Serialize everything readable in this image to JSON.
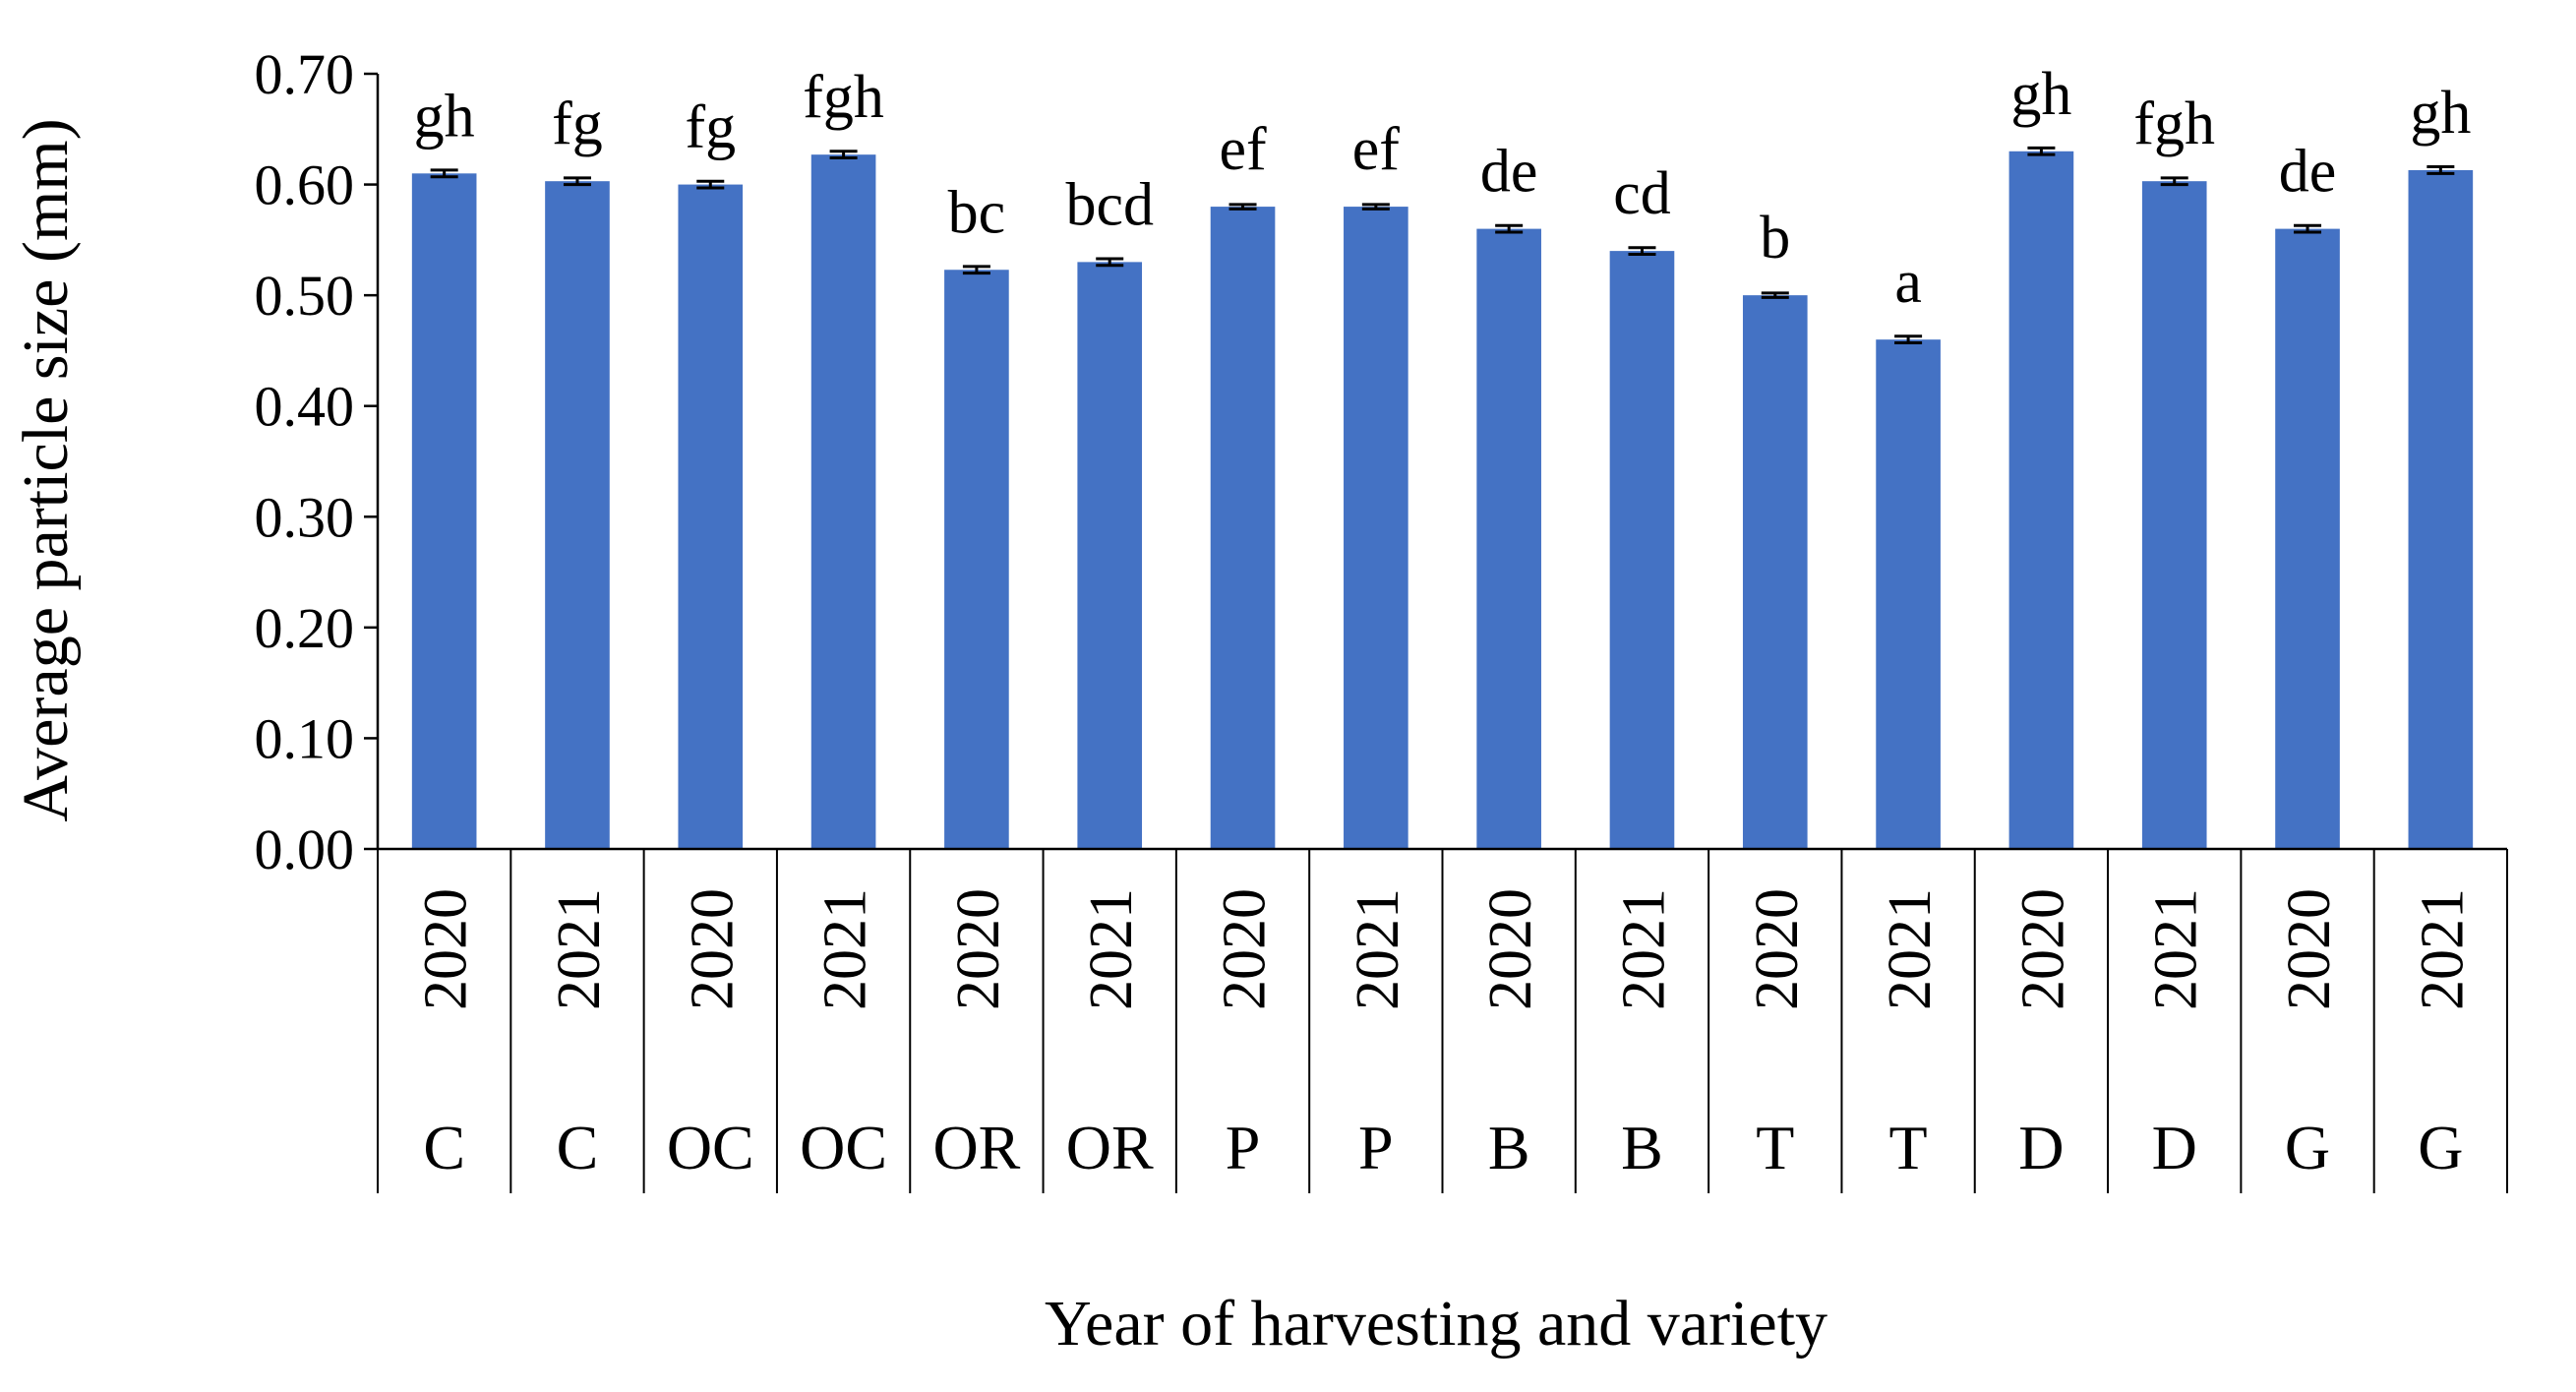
{
  "chart_data": {
    "type": "bar",
    "ylabel": "Average particle size (mm)",
    "xlabel": "Year of harvesting and variety",
    "ylim": [
      0,
      0.7
    ],
    "yticks": [
      "0.00",
      "0.10",
      "0.20",
      "0.30",
      "0.40",
      "0.50",
      "0.60",
      "0.70"
    ],
    "grid": false,
    "bar_color": "#4472C4",
    "error_bar_color": "#000000",
    "categories": [
      {
        "year": "2020",
        "variety": "C",
        "value": 0.61,
        "error": 0.003,
        "letters": "gh"
      },
      {
        "year": "2021",
        "variety": "C",
        "value": 0.603,
        "error": 0.003,
        "letters": "fg"
      },
      {
        "year": "2020",
        "variety": "OC",
        "value": 0.6,
        "error": 0.003,
        "letters": "fg"
      },
      {
        "year": "2021",
        "variety": "OC",
        "value": 0.627,
        "error": 0.003,
        "letters": "fgh"
      },
      {
        "year": "2020",
        "variety": "OR",
        "value": 0.523,
        "error": 0.003,
        "letters": "bc"
      },
      {
        "year": "2021",
        "variety": "OR",
        "value": 0.53,
        "error": 0.003,
        "letters": "bcd"
      },
      {
        "year": "2020",
        "variety": "P",
        "value": 0.58,
        "error": 0.002,
        "letters": "ef"
      },
      {
        "year": "2021",
        "variety": "P",
        "value": 0.58,
        "error": 0.002,
        "letters": "ef"
      },
      {
        "year": "2020",
        "variety": "B",
        "value": 0.56,
        "error": 0.003,
        "letters": "de"
      },
      {
        "year": "2021",
        "variety": "B",
        "value": 0.54,
        "error": 0.003,
        "letters": "cd"
      },
      {
        "year": "2020",
        "variety": "T",
        "value": 0.5,
        "error": 0.002,
        "letters": "b"
      },
      {
        "year": "2021",
        "variety": "T",
        "value": 0.46,
        "error": 0.003,
        "letters": "a"
      },
      {
        "year": "2020",
        "variety": "D",
        "value": 0.63,
        "error": 0.003,
        "letters": "gh"
      },
      {
        "year": "2021",
        "variety": "D",
        "value": 0.603,
        "error": 0.003,
        "letters": "fgh"
      },
      {
        "year": "2020",
        "variety": "G",
        "value": 0.56,
        "error": 0.003,
        "letters": "de"
      },
      {
        "year": "2021",
        "variety": "G",
        "value": 0.613,
        "error": 0.003,
        "letters": "gh"
      }
    ]
  }
}
